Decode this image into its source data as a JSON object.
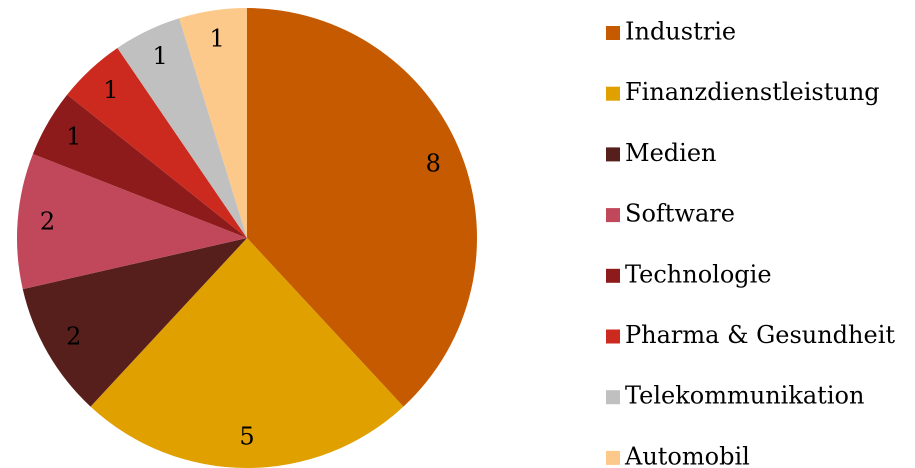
{
  "chart_data": {
    "type": "pie",
    "categories": [
      "Industrie",
      "Finanzdienstleistung",
      "Medien",
      "Software",
      "Technologie",
      "Pharma & Gesundheit",
      "Telekommunikation",
      "Automobil"
    ],
    "values": [
      8,
      5,
      2,
      2,
      1,
      1,
      1,
      1
    ],
    "colors": [
      "#c55a00",
      "#e0a000",
      "#561f1c",
      "#c0485a",
      "#8e1b1b",
      "#cc2a1e",
      "#c0c0c0",
      "#fdc98a"
    ],
    "legend": "right"
  }
}
